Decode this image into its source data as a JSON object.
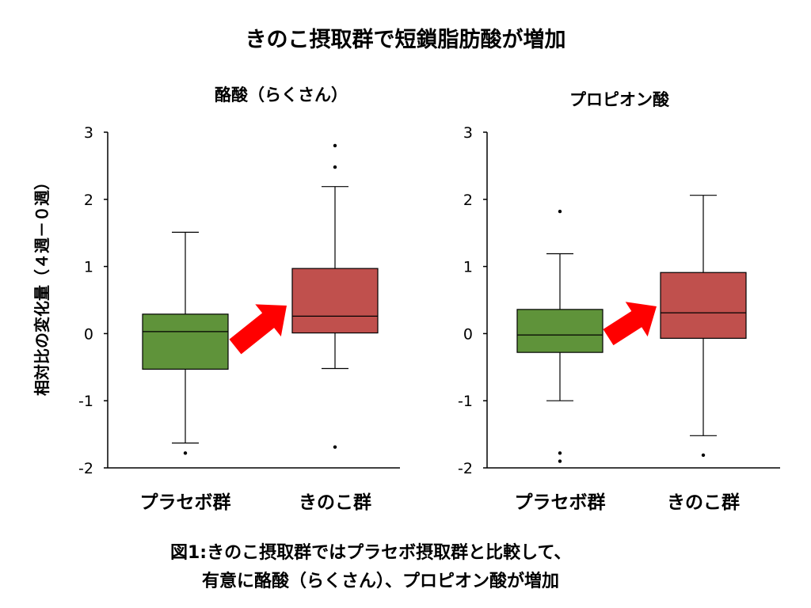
{
  "title": "きのこ摂取群で短鎖脂肪酸が増加",
  "y_axis_label": "相対比の変化量（４週－０週）",
  "caption": {
    "line1": "図1:きのこ摂取群ではプラセボ摂取群と比較して、",
    "line2": "有意に酪酸（らくさん）、プロピオン酸が増加"
  },
  "colors": {
    "placebo": "#5f933a",
    "kinoko": "#c0504d",
    "arrow": "#ff0000"
  },
  "chart_data": [
    {
      "type": "box",
      "title": "酪酸（らくさん）",
      "categories": [
        "プラセボ群",
        "きのこ群"
      ],
      "ylim": [
        -2,
        3
      ],
      "yticks": [
        "-2",
        "-1",
        "0",
        "1",
        "2",
        "3"
      ],
      "grid": false,
      "boxes": [
        {
          "group": "プラセボ群",
          "whisker_low": -1.63,
          "q1": -0.53,
          "median": 0.03,
          "q3": 0.29,
          "whisker_high": 1.51,
          "outliers": [
            -1.78
          ]
        },
        {
          "group": "きのこ群",
          "whisker_low": -0.52,
          "q1": 0.01,
          "median": 0.26,
          "q3": 0.97,
          "whisker_high": 2.19,
          "outliers": [
            2.48,
            2.8,
            -1.69
          ]
        }
      ]
    },
    {
      "type": "box",
      "title": "プロピオン酸",
      "categories": [
        "プラセボ群",
        "きのこ群"
      ],
      "ylim": [
        -2,
        3
      ],
      "yticks": [
        "-2",
        "-1",
        "0",
        "1",
        "2",
        "3"
      ],
      "grid": false,
      "boxes": [
        {
          "group": "プラセボ群",
          "whisker_low": -1.0,
          "q1": -0.28,
          "median": -0.02,
          "q3": 0.36,
          "whisker_high": 1.19,
          "outliers": [
            1.82,
            -1.78,
            -1.9
          ]
        },
        {
          "group": "きのこ群",
          "whisker_low": -1.52,
          "q1": -0.07,
          "median": 0.31,
          "q3": 0.91,
          "whisker_high": 2.06,
          "outliers": [
            -1.81
          ]
        }
      ]
    }
  ]
}
